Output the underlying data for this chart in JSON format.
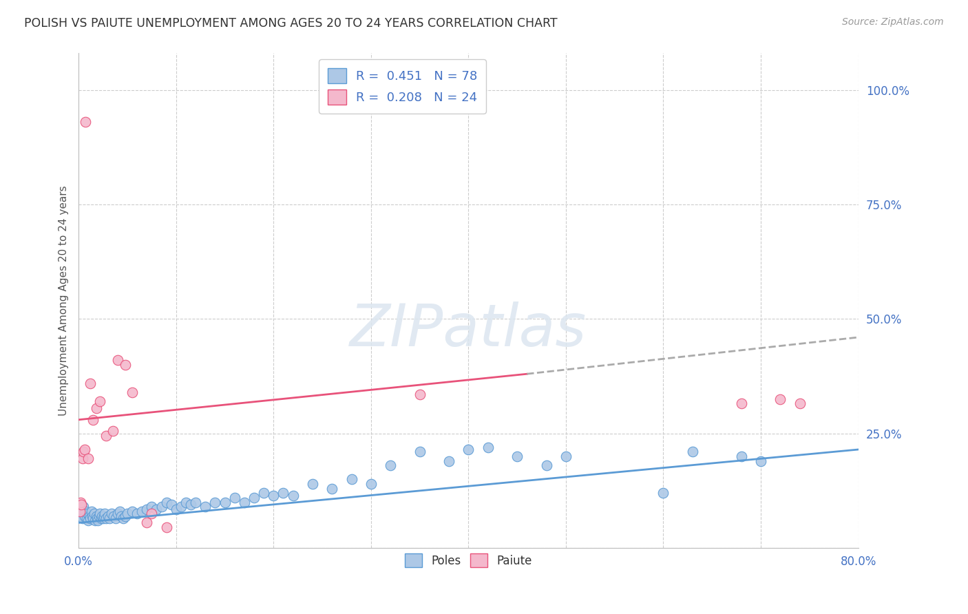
{
  "title": "POLISH VS PAIUTE UNEMPLOYMENT AMONG AGES 20 TO 24 YEARS CORRELATION CHART",
  "source": "Source: ZipAtlas.com",
  "ylabel": "Unemployment Among Ages 20 to 24 years",
  "xlim": [
    0.0,
    0.8
  ],
  "ylim": [
    0.0,
    1.08
  ],
  "xticks": [
    0.0,
    0.1,
    0.2,
    0.3,
    0.4,
    0.5,
    0.6,
    0.7,
    0.8
  ],
  "xticklabels": [
    "0.0%",
    "",
    "",
    "",
    "",
    "",
    "",
    "",
    "80.0%"
  ],
  "ytick_right_vals": [
    0.0,
    0.25,
    0.5,
    0.75,
    1.0
  ],
  "ytick_right_labels": [
    "",
    "25.0%",
    "50.0%",
    "75.0%",
    "100.0%"
  ],
  "poles_R": 0.451,
  "poles_N": 78,
  "paiute_R": 0.208,
  "paiute_N": 24,
  "poles_color": "#adc8e6",
  "poles_edge_color": "#5b9bd5",
  "paiute_color": "#f4b8cc",
  "paiute_edge_color": "#e8527a",
  "poles_line_color": "#5b9bd5",
  "paiute_line_color": "#e8527a",
  "legend_text_color": "#4472c4",
  "background_color": "#ffffff",
  "grid_color": "#cccccc",
  "poles_x": [
    0.002,
    0.003,
    0.004,
    0.005,
    0.006,
    0.007,
    0.008,
    0.009,
    0.01,
    0.011,
    0.012,
    0.013,
    0.014,
    0.015,
    0.016,
    0.017,
    0.018,
    0.019,
    0.02,
    0.021,
    0.022,
    0.023,
    0.024,
    0.025,
    0.026,
    0.027,
    0.028,
    0.03,
    0.032,
    0.034,
    0.036,
    0.038,
    0.04,
    0.042,
    0.044,
    0.046,
    0.048,
    0.05,
    0.055,
    0.06,
    0.065,
    0.07,
    0.075,
    0.08,
    0.085,
    0.09,
    0.095,
    0.1,
    0.105,
    0.11,
    0.115,
    0.12,
    0.13,
    0.14,
    0.15,
    0.16,
    0.17,
    0.18,
    0.19,
    0.2,
    0.21,
    0.22,
    0.24,
    0.26,
    0.28,
    0.3,
    0.32,
    0.35,
    0.38,
    0.4,
    0.42,
    0.45,
    0.48,
    0.5,
    0.6,
    0.63,
    0.68,
    0.7
  ],
  "poles_y": [
    0.07,
    0.08,
    0.065,
    0.09,
    0.07,
    0.08,
    0.065,
    0.075,
    0.06,
    0.07,
    0.065,
    0.08,
    0.07,
    0.065,
    0.075,
    0.06,
    0.07,
    0.065,
    0.06,
    0.07,
    0.075,
    0.065,
    0.07,
    0.065,
    0.07,
    0.075,
    0.065,
    0.07,
    0.065,
    0.075,
    0.07,
    0.065,
    0.075,
    0.08,
    0.07,
    0.065,
    0.07,
    0.075,
    0.08,
    0.075,
    0.08,
    0.085,
    0.09,
    0.085,
    0.09,
    0.1,
    0.095,
    0.085,
    0.09,
    0.1,
    0.095,
    0.1,
    0.09,
    0.1,
    0.1,
    0.11,
    0.1,
    0.11,
    0.12,
    0.115,
    0.12,
    0.115,
    0.14,
    0.13,
    0.15,
    0.14,
    0.18,
    0.21,
    0.19,
    0.215,
    0.22,
    0.2,
    0.18,
    0.2,
    0.12,
    0.21,
    0.2,
    0.19
  ],
  "paiute_x": [
    0.001,
    0.002,
    0.003,
    0.004,
    0.005,
    0.006,
    0.007,
    0.01,
    0.012,
    0.015,
    0.018,
    0.022,
    0.028,
    0.035,
    0.04,
    0.048,
    0.055,
    0.07,
    0.075,
    0.09,
    0.35,
    0.68,
    0.72,
    0.74
  ],
  "paiute_y": [
    0.08,
    0.1,
    0.095,
    0.195,
    0.21,
    0.215,
    0.93,
    0.195,
    0.36,
    0.28,
    0.305,
    0.32,
    0.245,
    0.255,
    0.41,
    0.4,
    0.34,
    0.055,
    0.075,
    0.045,
    0.335,
    0.315,
    0.325,
    0.315
  ],
  "poles_trend": [
    0.0,
    0.8,
    0.055,
    0.215
  ],
  "paiute_trend_solid": [
    0.0,
    0.46,
    0.28,
    0.38
  ],
  "paiute_trend_dash": [
    0.46,
    0.8,
    0.38,
    0.46
  ]
}
